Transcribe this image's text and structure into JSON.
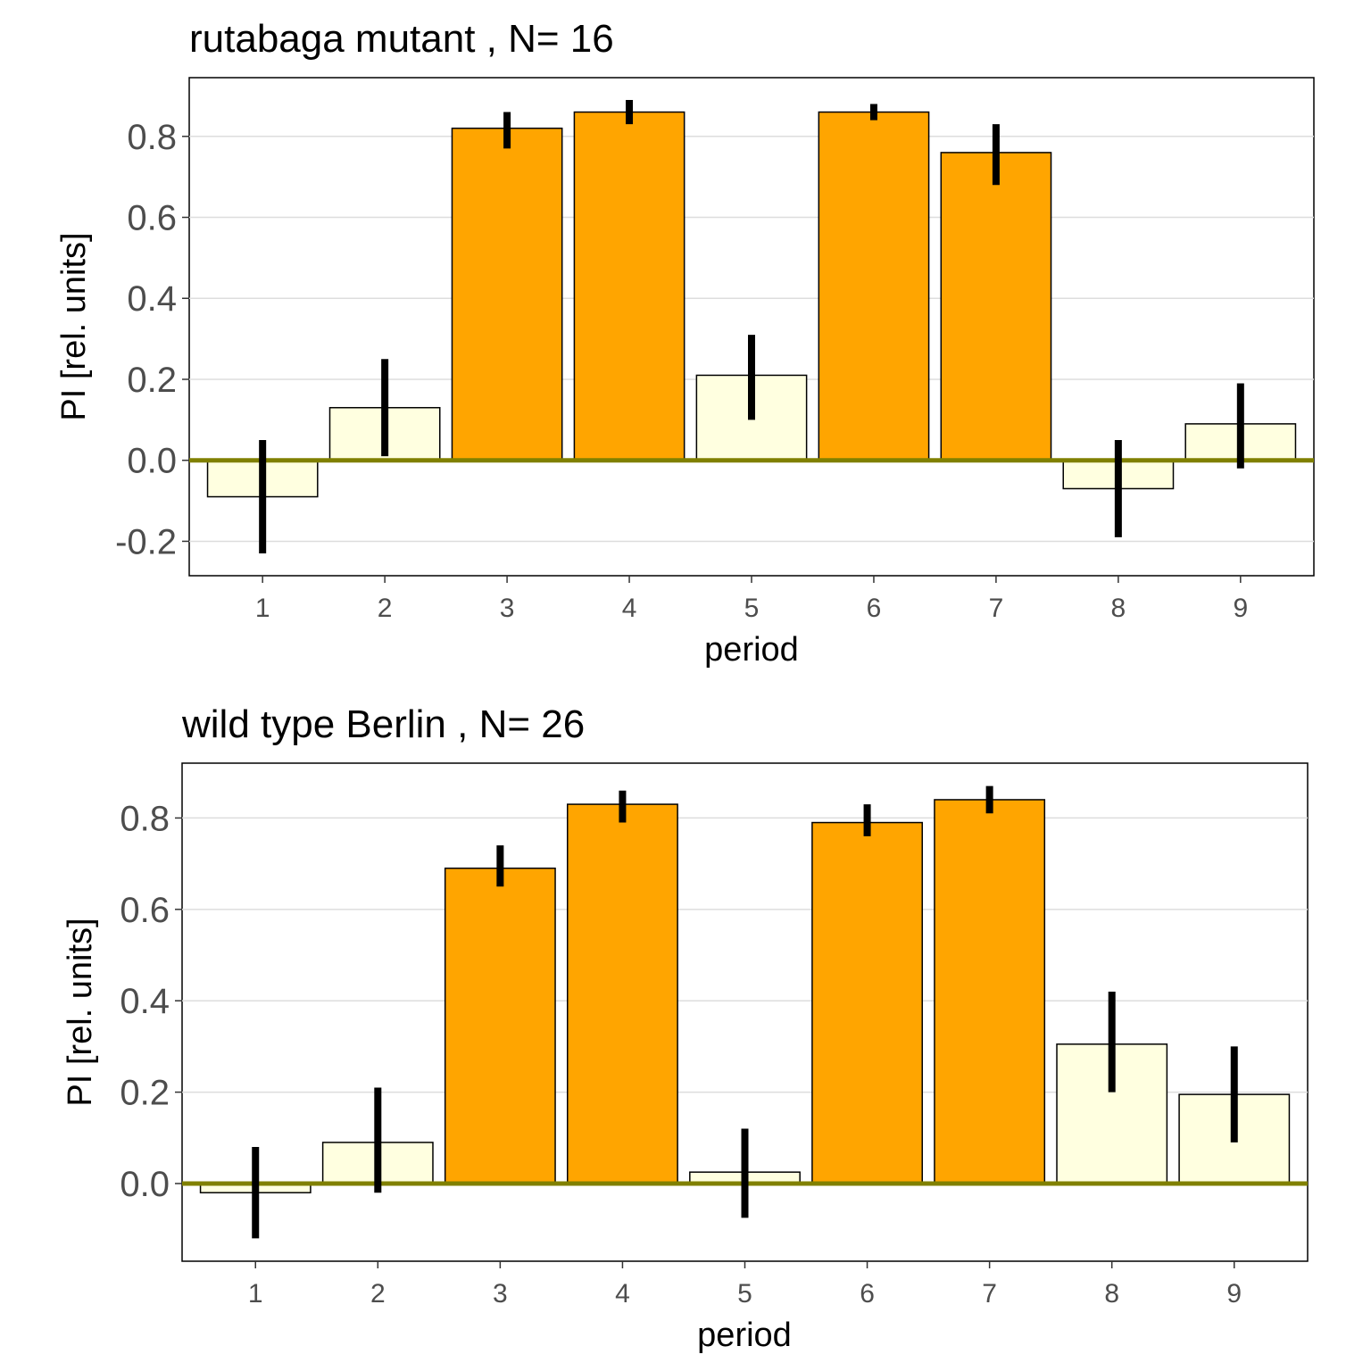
{
  "chart_data": [
    {
      "type": "bar",
      "title": "rutabaga mutant , N= 16",
      "xlabel": "period",
      "ylabel": "PI [rel. units]",
      "categories": [
        "1",
        "2",
        "3",
        "4",
        "5",
        "6",
        "7",
        "8",
        "9"
      ],
      "values": [
        -0.09,
        0.13,
        0.82,
        0.86,
        0.21,
        0.86,
        0.76,
        -0.07,
        0.09
      ],
      "error_low": [
        -0.23,
        0.01,
        0.77,
        0.83,
        0.1,
        0.84,
        0.68,
        -0.19,
        -0.02
      ],
      "error_high": [
        0.05,
        0.25,
        0.86,
        0.89,
        0.31,
        0.88,
        0.83,
        0.05,
        0.19
      ],
      "highlight": [
        false,
        false,
        true,
        true,
        false,
        true,
        true,
        false,
        false
      ],
      "yticks": [
        -0.2,
        0.0,
        0.2,
        0.4,
        0.6,
        0.8
      ],
      "ytick_labels": [
        "-0.2",
        "0.0",
        "0.2",
        "0.4",
        "0.6",
        "0.8"
      ],
      "ylim": [
        -0.285,
        0.945
      ],
      "grid": true,
      "colors": {
        "highlight": "#FFA500",
        "normal": "#FFFFE0",
        "zero_line": "#808000",
        "error": "#000000"
      }
    },
    {
      "type": "bar",
      "title": "wild type Berlin , N= 26",
      "xlabel": "period",
      "ylabel": "PI [rel. units]",
      "categories": [
        "1",
        "2",
        "3",
        "4",
        "5",
        "6",
        "7",
        "8",
        "9"
      ],
      "values": [
        -0.02,
        0.09,
        0.69,
        0.83,
        0.025,
        0.79,
        0.84,
        0.305,
        0.195
      ],
      "error_low": [
        -0.12,
        -0.02,
        0.65,
        0.79,
        -0.075,
        0.76,
        0.81,
        0.2,
        0.09
      ],
      "error_high": [
        0.08,
        0.21,
        0.74,
        0.86,
        0.12,
        0.83,
        0.87,
        0.42,
        0.3
      ],
      "highlight": [
        false,
        false,
        true,
        true,
        false,
        true,
        true,
        false,
        false
      ],
      "yticks": [
        0.0,
        0.2,
        0.4,
        0.6,
        0.8
      ],
      "ytick_labels": [
        "0.0",
        "0.2",
        "0.4",
        "0.6",
        "0.8"
      ],
      "ylim": [
        -0.17,
        0.92
      ],
      "grid": true,
      "colors": {
        "highlight": "#FFA500",
        "normal": "#FFFFE0",
        "zero_line": "#808000",
        "error": "#000000"
      }
    }
  ]
}
